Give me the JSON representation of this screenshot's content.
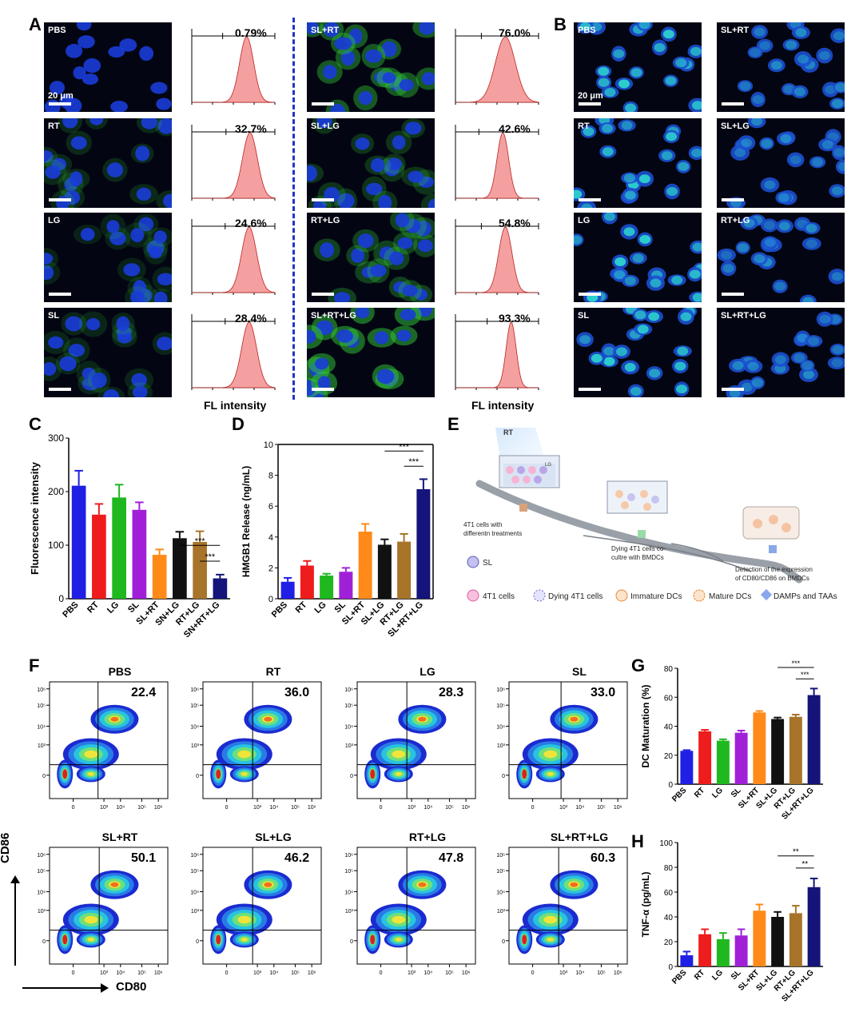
{
  "panels": {
    "A": "A",
    "B": "B",
    "C": "C",
    "D": "D",
    "E": "E",
    "F": "F",
    "G": "G",
    "H": "H"
  },
  "panel_a": {
    "scale_bar": "20 μm",
    "x_axis_label": "FL intensity",
    "items": [
      {
        "label": "PBS",
        "pct": "0.79%",
        "peak": 0.66,
        "width": 0.085
      },
      {
        "label": "RT",
        "pct": "32.7%",
        "peak": 0.7,
        "width": 0.09
      },
      {
        "label": "LG",
        "pct": "24.6%",
        "peak": 0.69,
        "width": 0.09
      },
      {
        "label": "SL",
        "pct": "28.4%",
        "peak": 0.69,
        "width": 0.09
      },
      {
        "label": "SL+RT",
        "pct": "76.0%",
        "peak": 0.6,
        "width": 0.12
      },
      {
        "label": "SL+LG",
        "pct": "42.6%",
        "peak": 0.57,
        "width": 0.07
      },
      {
        "label": "RT+LG",
        "pct": "54.8%",
        "peak": 0.6,
        "width": 0.08
      },
      {
        "label": "SL+RT+LG",
        "pct": "93.3%",
        "peak": 0.67,
        "width": 0.06
      }
    ]
  },
  "panel_b": {
    "scale_bar": "20 μm",
    "items": [
      "PBS",
      "SL+RT",
      "RT",
      "SL+LG",
      "LG",
      "RT+LG",
      "SL",
      "SL+RT+LG"
    ]
  },
  "colors": {
    "series": [
      "#1f1fe6",
      "#ee1c1c",
      "#1fb81f",
      "#a020d8",
      "#ff8a1a",
      "#111111",
      "#a8742a",
      "#14147a"
    ],
    "micro_blue": "#1a3cd8",
    "micro_green": "#33c93a",
    "histogram_fill": "#f4a0a0",
    "divider": "#2234c9"
  },
  "chart_data": [
    {
      "panel": "C",
      "type": "bar",
      "categories": [
        "PBS",
        "RT",
        "LG",
        "SL",
        "SL+RT",
        "SN+LG",
        "RT+LG",
        "SN+RT+LG"
      ],
      "values": [
        211,
        157,
        189,
        166,
        82,
        113,
        106,
        38
      ],
      "errors": [
        28,
        20,
        24,
        14,
        10,
        12,
        20,
        7
      ],
      "ylabel": "Fluorescence intensity",
      "ylim": [
        0,
        300
      ],
      "yticks": [
        0,
        100,
        200,
        300
      ],
      "sig": [
        {
          "label": "***"
        },
        {
          "label": "***"
        }
      ]
    },
    {
      "panel": "D",
      "type": "bar",
      "categories": [
        "PBS",
        "RT",
        "LG",
        "SL",
        "SL+RT",
        "SL+LG",
        "RT+LG",
        "SL+RT+LG"
      ],
      "values": [
        1.1,
        2.15,
        1.5,
        1.75,
        4.35,
        3.5,
        3.7,
        7.1
      ],
      "errors": [
        0.25,
        0.3,
        0.12,
        0.25,
        0.5,
        0.35,
        0.5,
        0.65
      ],
      "ylabel": "HMGB1 Release (ng/mL)",
      "ylim": [
        0,
        10
      ],
      "yticks": [
        0,
        2,
        4,
        6,
        8,
        10
      ],
      "sig": [
        {
          "label": "***"
        },
        {
          "label": "***"
        }
      ]
    },
    {
      "panel": "G",
      "type": "bar",
      "categories": [
        "PBS",
        "RT",
        "LG",
        "SL",
        "SL+RT",
        "SL+LG",
        "RT+LG",
        "SL+RT+LG"
      ],
      "values": [
        23,
        36.5,
        30,
        35.5,
        49.5,
        45,
        46.5,
        61.5
      ],
      "errors": [
        0.5,
        1,
        1,
        1.5,
        1,
        1,
        1.5,
        4.5
      ],
      "ylabel": "DC Maturation (%)",
      "ylim": [
        0,
        80
      ],
      "yticks": [
        0,
        20,
        40,
        60,
        80
      ],
      "sig": [
        {
          "label": "***"
        },
        {
          "label": "***"
        }
      ]
    },
    {
      "panel": "H",
      "type": "bar",
      "categories": [
        "PBS",
        "RT",
        "LG",
        "SL",
        "SL+RT",
        "SL+LG",
        "RT+LG",
        "SL+RT+LG"
      ],
      "values": [
        9,
        26,
        22,
        25,
        45,
        40,
        43,
        64
      ],
      "errors": [
        3,
        4,
        5,
        5,
        5,
        4,
        6,
        7
      ],
      "ylabel": "TNF-α (pg/mL)",
      "ylim": [
        0,
        100
      ],
      "yticks": [
        0,
        20,
        40,
        60,
        80,
        100
      ],
      "sig": [
        {
          "label": "**"
        },
        {
          "label": "**"
        }
      ]
    }
  ],
  "panel_e": {
    "rt": "RT",
    "lg": "LG",
    "step1": [
      "4T1 cells with",
      "differentn treatments"
    ],
    "step2": [
      "Dying 4T1 cells co-",
      "cultre with BMDCs"
    ],
    "step3": [
      "Detection of the expression",
      "of CD80/CD86 on BMDCs"
    ],
    "legend": [
      "SL",
      "4T1 cells",
      "Dying 4T1 cells",
      "Immature DCs",
      "Mature DCs",
      "DAMPs and TAAs"
    ]
  },
  "panel_f": {
    "y_label": "CD86",
    "x_label": "CD80",
    "tick_x": [
      "0",
      "10³",
      "10⁴",
      "10⁵",
      "10⁶"
    ],
    "tick_y": [
      "0",
      "10³",
      "10⁴",
      "10⁵",
      "10⁶"
    ],
    "items": [
      {
        "title": "PBS",
        "pct": "22.4"
      },
      {
        "title": "RT",
        "pct": "36.0"
      },
      {
        "title": "LG",
        "pct": "28.3"
      },
      {
        "title": "SL",
        "pct": "33.0"
      },
      {
        "title": "SL+RT",
        "pct": "50.1"
      },
      {
        "title": "SL+LG",
        "pct": "46.2"
      },
      {
        "title": "RT+LG",
        "pct": "47.8"
      },
      {
        "title": "SL+RT+LG",
        "pct": "60.3"
      }
    ]
  }
}
